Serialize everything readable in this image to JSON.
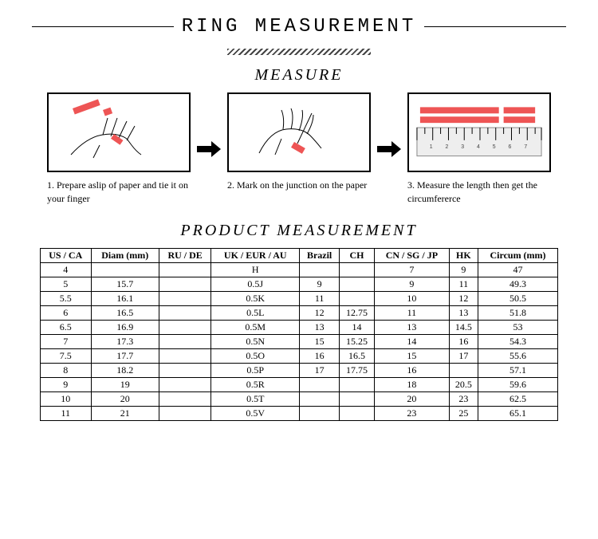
{
  "title": "RING MEASUREMENT",
  "measure_label": "MEASURE",
  "product_label": "PRODUCT MEASUREMENT",
  "accent_color": "#e55",
  "steps": [
    {
      "caption": "1. Prepare aslip of paper and tie it on your finger"
    },
    {
      "caption": "2. Mark on the junction on the paper"
    },
    {
      "caption": "3. Measure the length then get the circumfererce"
    }
  ],
  "table": {
    "headers": [
      "US / CA",
      "Diam (mm)",
      "RU / DE",
      "UK / EUR / AU",
      "Brazil",
      "CH",
      "CN / SG / JP",
      "HK",
      "Circum (mm)"
    ],
    "rows": [
      [
        "4",
        "",
        "",
        "H",
        "",
        "",
        "7",
        "9",
        "47"
      ],
      [
        "5",
        "15.7",
        "",
        "0.5J",
        "9",
        "",
        "9",
        "11",
        "49.3"
      ],
      [
        "5.5",
        "16.1",
        "",
        "0.5K",
        "11",
        "",
        "10",
        "12",
        "50.5"
      ],
      [
        "6",
        "16.5",
        "",
        "0.5L",
        "12",
        "12.75",
        "11",
        "13",
        "51.8"
      ],
      [
        "6.5",
        "16.9",
        "",
        "0.5M",
        "13",
        "14",
        "13",
        "14.5",
        "53"
      ],
      [
        "7",
        "17.3",
        "",
        "0.5N",
        "15",
        "15.25",
        "14",
        "16",
        "54.3"
      ],
      [
        "7.5",
        "17.7",
        "",
        "0.5O",
        "16",
        "16.5",
        "15",
        "17",
        "55.6"
      ],
      [
        "8",
        "18.2",
        "",
        "0.5P",
        "17",
        "17.75",
        "16",
        "",
        "57.1"
      ],
      [
        "9",
        "19",
        "",
        "0.5R",
        "",
        "",
        "18",
        "20.5",
        "59.6"
      ],
      [
        "10",
        "20",
        "",
        "0.5T",
        "",
        "",
        "20",
        "23",
        "62.5"
      ],
      [
        "11",
        "21",
        "",
        "0.5V",
        "",
        "",
        "23",
        "25",
        "65.1"
      ]
    ]
  }
}
